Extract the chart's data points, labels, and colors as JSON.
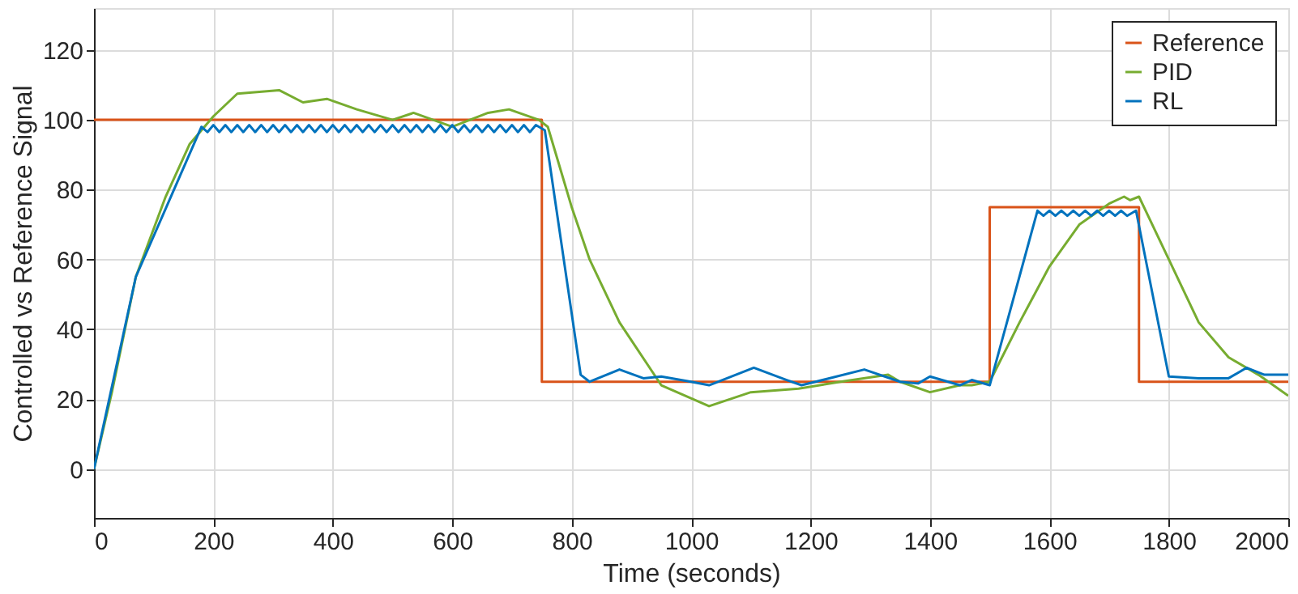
{
  "chart_data": {
    "type": "line",
    "xlabel": "Time (seconds)",
    "ylabel": "Controlled vs Reference Signal",
    "xlim": [
      0,
      2000
    ],
    "ylim": [
      -14,
      132
    ],
    "xticks": [
      0,
      200,
      400,
      600,
      800,
      1000,
      1200,
      1400,
      1600,
      1800,
      2000
    ],
    "yticks": [
      0,
      20,
      40,
      60,
      80,
      100,
      120
    ],
    "grid": true,
    "legend": "top right",
    "line_style": "solid",
    "marker": "none",
    "series": [
      {
        "name": "Reference",
        "color": "#d95319",
        "x": [
          0,
          750,
          750,
          1500,
          1500,
          1750,
          1750,
          2000
        ],
        "values": [
          100,
          100,
          25,
          25,
          75,
          75,
          25,
          25
        ]
      },
      {
        "name": "PID",
        "color": "#77ac30",
        "x": [
          0,
          30,
          70,
          120,
          160,
          200,
          240,
          310,
          350,
          390,
          440,
          500,
          535,
          600,
          660,
          695,
          745,
          760,
          800,
          830,
          880,
          950,
          1030,
          1100,
          1180,
          1250,
          1330,
          1350,
          1400,
          1450,
          1470,
          1500,
          1550,
          1600,
          1650,
          1700,
          1725,
          1735,
          1750,
          1800,
          1850,
          1900,
          1950,
          2000
        ],
        "values": [
          0,
          22,
          55,
          78,
          93,
          101,
          107.5,
          108.5,
          105,
          106,
          103,
          100,
          102,
          98,
          102,
          103,
          100,
          98,
          75,
          60,
          42,
          24,
          18,
          22,
          23,
          25,
          27,
          25,
          22,
          24,
          24,
          25,
          42,
          58,
          70,
          76,
          78,
          77,
          78,
          60,
          42,
          32,
          27,
          21
        ]
      },
      {
        "name": "RL",
        "color": "#0072bd",
        "x": [
          0,
          70,
          180,
          190,
          200,
          210,
          220,
          230,
          240,
          250,
          260,
          270,
          280,
          290,
          300,
          310,
          320,
          330,
          340,
          350,
          360,
          370,
          380,
          390,
          400,
          410,
          420,
          430,
          440,
          450,
          460,
          470,
          480,
          490,
          500,
          510,
          520,
          530,
          540,
          550,
          560,
          570,
          580,
          590,
          600,
          610,
          620,
          630,
          640,
          650,
          660,
          670,
          680,
          690,
          700,
          710,
          720,
          730,
          740,
          755,
          815,
          830,
          880,
          920,
          950,
          1000,
          1030,
          1105,
          1160,
          1185,
          1290,
          1350,
          1380,
          1400,
          1450,
          1470,
          1500,
          1580,
          1590,
          1600,
          1610,
          1620,
          1630,
          1640,
          1650,
          1660,
          1670,
          1680,
          1690,
          1700,
          1710,
          1720,
          1730,
          1745,
          1800,
          1850,
          1900,
          1930,
          1960,
          2000
        ],
        "values": [
          0,
          55,
          98,
          96.5,
          98.5,
          96.5,
          98.5,
          96.5,
          98.5,
          96.5,
          98.5,
          96.5,
          98.5,
          96.5,
          98.5,
          96.5,
          98.5,
          96.5,
          98.5,
          96.5,
          98.5,
          96.5,
          98.5,
          96.5,
          98.5,
          96.5,
          98.5,
          96.5,
          98.5,
          96.5,
          98.5,
          96.5,
          98.5,
          96.5,
          98.5,
          96.5,
          98.5,
          96.5,
          98.5,
          96.5,
          98.5,
          96.5,
          98.5,
          96.5,
          98.5,
          96.5,
          98.5,
          96.5,
          98.5,
          96.5,
          98.5,
          96.5,
          98.5,
          96.5,
          98.5,
          96.5,
          98.5,
          96.5,
          98.5,
          97,
          27,
          25,
          28.5,
          26,
          26.5,
          25,
          24,
          29,
          25.5,
          24,
          28.5,
          25,
          24.5,
          26.5,
          24,
          25.5,
          24,
          74,
          72.5,
          74,
          72.5,
          74,
          72.5,
          74,
          72.5,
          74,
          72.5,
          74,
          72.5,
          74,
          72.5,
          74,
          72.5,
          74,
          26.5,
          26,
          26,
          29,
          27,
          27
        ]
      }
    ]
  }
}
